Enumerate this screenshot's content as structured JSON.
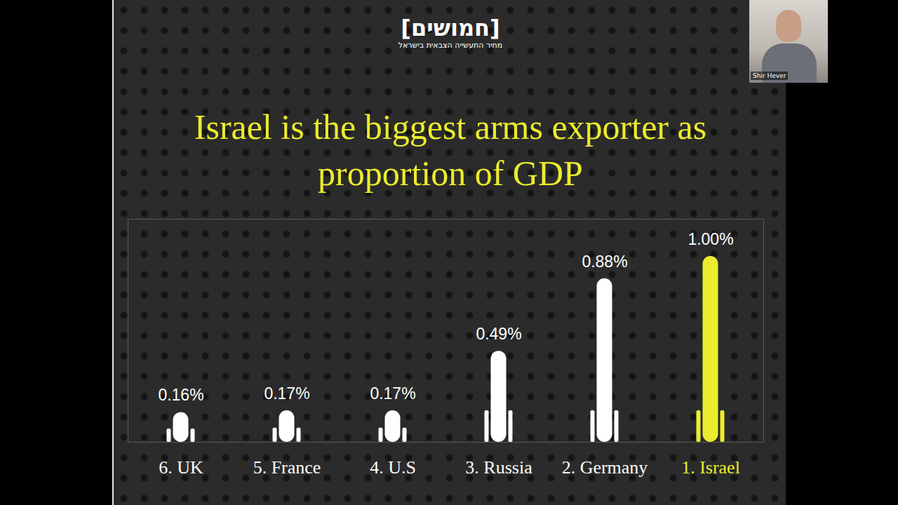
{
  "chart_data": {
    "type": "bar",
    "title": "Israel is the biggest arms exporter as proportion of GDP",
    "categories": [
      "6. UK",
      "5. France",
      "4. U.S",
      "3. Russia",
      "2. Germany",
      "1. Israel"
    ],
    "values": [
      0.16,
      0.17,
      0.17,
      0.49,
      0.88,
      1.0
    ],
    "value_labels": [
      "0.16%",
      "0.17%",
      "0.17%",
      "0.49%",
      "0.88%",
      "1.00%"
    ],
    "colors": [
      "#ffffff",
      "#ffffff",
      "#ffffff",
      "#ffffff",
      "#ffffff",
      "#ecec2e"
    ],
    "ylim": [
      0,
      1.2
    ],
    "yticks": [],
    "tick_labels": "x",
    "data_labels": true,
    "grid": false
  },
  "logo": {
    "name": "[חמושים]",
    "subtitle": "מחיר התעשייה הצבאית בישראל"
  },
  "video_caption": "Shir Hever"
}
